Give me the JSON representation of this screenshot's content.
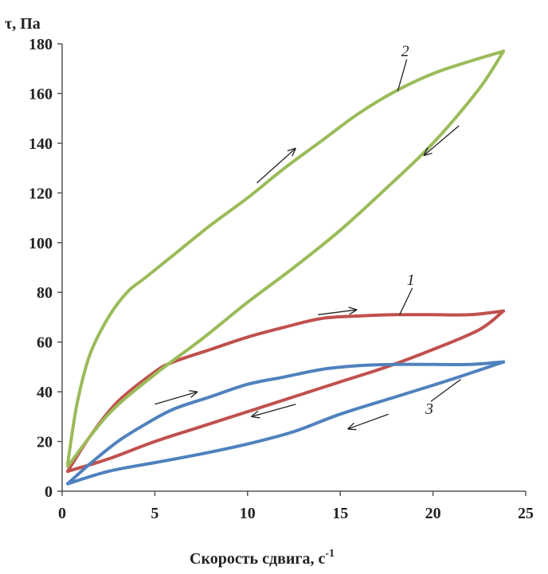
{
  "chart_data": {
    "type": "line",
    "title": "",
    "ylabel": "τ, Па",
    "xlabel": "Скорость сдвига, с",
    "xlabel_exp": "-1",
    "xlim": [
      0,
      25
    ],
    "ylim": [
      0,
      180
    ],
    "xticks": [
      0,
      5,
      10,
      15,
      20,
      25
    ],
    "yticks": [
      0,
      20,
      40,
      60,
      80,
      100,
      120,
      140,
      160,
      180
    ],
    "grid": false,
    "legend": "none",
    "series": [
      {
        "name": "1",
        "color": "#c0504d",
        "up": [
          [
            0.3,
            8
          ],
          [
            1.5,
            22
          ],
          [
            3,
            36
          ],
          [
            5,
            48
          ],
          [
            6,
            52
          ],
          [
            8,
            57
          ],
          [
            10,
            62
          ],
          [
            12,
            66
          ],
          [
            14,
            69.5
          ],
          [
            16,
            70.5
          ],
          [
            18,
            71
          ],
          [
            20,
            71
          ],
          [
            22,
            71
          ],
          [
            23.8,
            72.5
          ]
        ],
        "down": [
          [
            23.8,
            72.5
          ],
          [
            22.5,
            65
          ],
          [
            20,
            57
          ],
          [
            17.5,
            50
          ],
          [
            15,
            44
          ],
          [
            12.5,
            38
          ],
          [
            10,
            32
          ],
          [
            7.5,
            26
          ],
          [
            5,
            20
          ],
          [
            2.5,
            13
          ],
          [
            0.3,
            8
          ]
        ]
      },
      {
        "name": "2",
        "color": "#9bbb59",
        "up": [
          [
            0.3,
            11
          ],
          [
            0.8,
            35
          ],
          [
            1.5,
            55
          ],
          [
            2.5,
            70
          ],
          [
            3.5,
            80
          ],
          [
            4.5,
            86
          ],
          [
            6,
            95
          ],
          [
            8,
            107
          ],
          [
            10,
            118
          ],
          [
            12,
            130
          ],
          [
            14,
            141
          ],
          [
            16,
            152
          ],
          [
            18,
            161
          ],
          [
            20,
            168
          ],
          [
            22,
            173
          ],
          [
            23.8,
            177
          ]
        ],
        "down": [
          [
            23.8,
            177
          ],
          [
            22.5,
            162
          ],
          [
            20,
            140
          ],
          [
            17.5,
            122
          ],
          [
            15,
            105
          ],
          [
            12.5,
            90
          ],
          [
            10,
            76
          ],
          [
            7.5,
            61
          ],
          [
            5,
            47
          ],
          [
            2.5,
            31
          ],
          [
            0.3,
            10
          ]
        ]
      },
      {
        "name": "3",
        "color": "#4f81bd",
        "up": [
          [
            0.3,
            3
          ],
          [
            1.5,
            11
          ],
          [
            3,
            20
          ],
          [
            4.5,
            27
          ],
          [
            6,
            33
          ],
          [
            8,
            38
          ],
          [
            10,
            43
          ],
          [
            12,
            46
          ],
          [
            14,
            49
          ],
          [
            16,
            50.5
          ],
          [
            18,
            51
          ],
          [
            20,
            51
          ],
          [
            22,
            51
          ],
          [
            23.8,
            52
          ]
        ],
        "down": [
          [
            23.8,
            52
          ],
          [
            21,
            45
          ],
          [
            18,
            38
          ],
          [
            15,
            31
          ],
          [
            12.5,
            24
          ],
          [
            10,
            19
          ],
          [
            7.5,
            15
          ],
          [
            5,
            11.5
          ],
          [
            2.5,
            8
          ],
          [
            0.3,
            3
          ]
        ]
      }
    ],
    "arrows": [
      {
        "series": "2",
        "direction": "up",
        "from": [
          10.5,
          124
        ],
        "to": [
          12.6,
          138
        ]
      },
      {
        "series": "2",
        "direction": "down",
        "from": [
          21.4,
          147
        ],
        "to": [
          19.5,
          135
        ]
      },
      {
        "series": "1",
        "direction": "up",
        "from": [
          13.8,
          71
        ],
        "to": [
          15.9,
          73
        ]
      },
      {
        "series": "1",
        "direction": "down",
        "from": [
          12.6,
          35
        ],
        "to": [
          10.2,
          30
        ]
      },
      {
        "series": "3",
        "direction": "up",
        "from": [
          5,
          35
        ],
        "to": [
          7.3,
          40
        ]
      },
      {
        "series": "3",
        "direction": "down",
        "from": [
          17.6,
          31
        ],
        "to": [
          15.4,
          25
        ]
      }
    ],
    "annotations": [
      {
        "text": "2",
        "series": "2",
        "label_at": [
          18.5,
          175
        ],
        "leader_to": [
          18.1,
          161
        ]
      },
      {
        "text": "1",
        "series": "1",
        "label_at": [
          18.8,
          83
        ],
        "leader_to": [
          18.2,
          71
        ]
      },
      {
        "text": "3",
        "series": "3",
        "label_at": [
          19.8,
          31
        ],
        "leader_to": [
          21.5,
          45
        ]
      }
    ]
  }
}
